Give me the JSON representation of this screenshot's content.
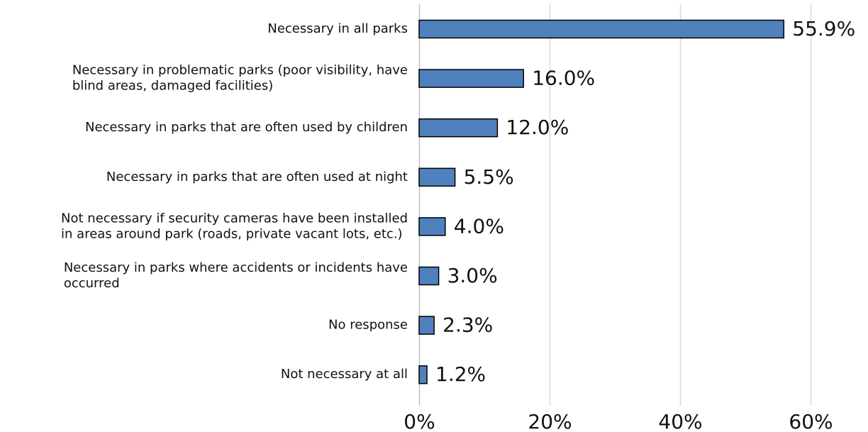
{
  "chart_data": {
    "type": "bar",
    "orientation": "horizontal",
    "title": "",
    "xlabel": "",
    "ylabel": "",
    "xlim": [
      0,
      60
    ],
    "x_ticks": [
      0,
      20,
      40,
      60
    ],
    "x_tick_labels": [
      "0%",
      "20%",
      "40%",
      "60%"
    ],
    "grid": "vertical",
    "legend": "none",
    "bar_color": "#4F81BD",
    "bar_edge_color": "#000000",
    "gridline_color": "#d9d9d9",
    "categories": [
      [
        "Necessary in all parks"
      ],
      [
        "Necessary in problematic parks (poor visibility, have",
        "blind areas, damaged facilities)"
      ],
      [
        "Necessary in parks that are often used by children"
      ],
      [
        "Necessary in parks that are often used at night"
      ],
      [
        "Not necessary if security cameras have been installed",
        "in areas around park (roads, private vacant lots, etc.)"
      ],
      [
        "Necessary in parks where accidents or incidents have",
        "occurred"
      ],
      [
        "No response"
      ],
      [
        "Not necessary at all"
      ]
    ],
    "values": [
      55.9,
      16.0,
      12.0,
      5.5,
      4.0,
      3.0,
      2.3,
      1.2
    ],
    "value_labels": [
      "55.9%",
      "16.0%",
      "12.0%",
      "5.5%",
      "4.0%",
      "3.0%",
      "2.3%",
      "1.2%"
    ]
  }
}
